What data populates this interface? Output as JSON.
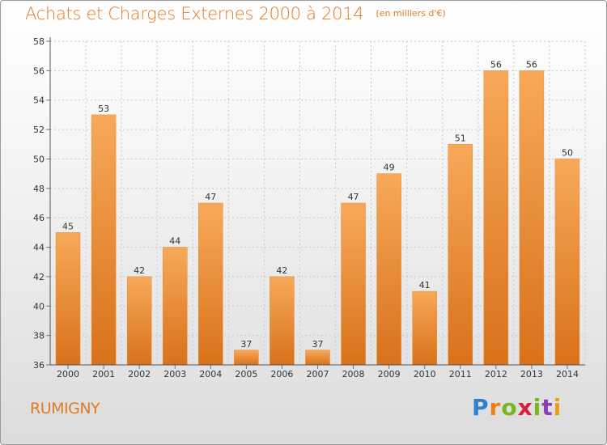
{
  "header": {
    "title": "Achats et Charges Externes 2000 à 2014",
    "unit": "(en milliers d'€)"
  },
  "footer": {
    "commune": "RUMIGNY",
    "logo": [
      "P",
      "r",
      "o",
      "x",
      "i",
      "t",
      "i"
    ]
  },
  "chart_data": {
    "type": "bar",
    "title": "Achats et Charges Externes 2000 à 2014",
    "subtitle": "(en milliers d'€)",
    "categories": [
      "2000",
      "2001",
      "2002",
      "2003",
      "2004",
      "2005",
      "2006",
      "2007",
      "2008",
      "2009",
      "2010",
      "2011",
      "2012",
      "2013",
      "2014"
    ],
    "values": [
      45,
      53,
      42,
      44,
      47,
      37,
      42,
      37,
      47,
      49,
      41,
      51,
      56,
      56,
      50
    ],
    "ylim": [
      36,
      58
    ],
    "yticks": [
      36,
      38,
      40,
      42,
      44,
      46,
      48,
      50,
      52,
      54,
      56,
      58
    ],
    "grid": true,
    "bar_color": "#f08c2c",
    "bar_color_light": "#f7a95a",
    "bar_color_dark": "#d9711a"
  }
}
